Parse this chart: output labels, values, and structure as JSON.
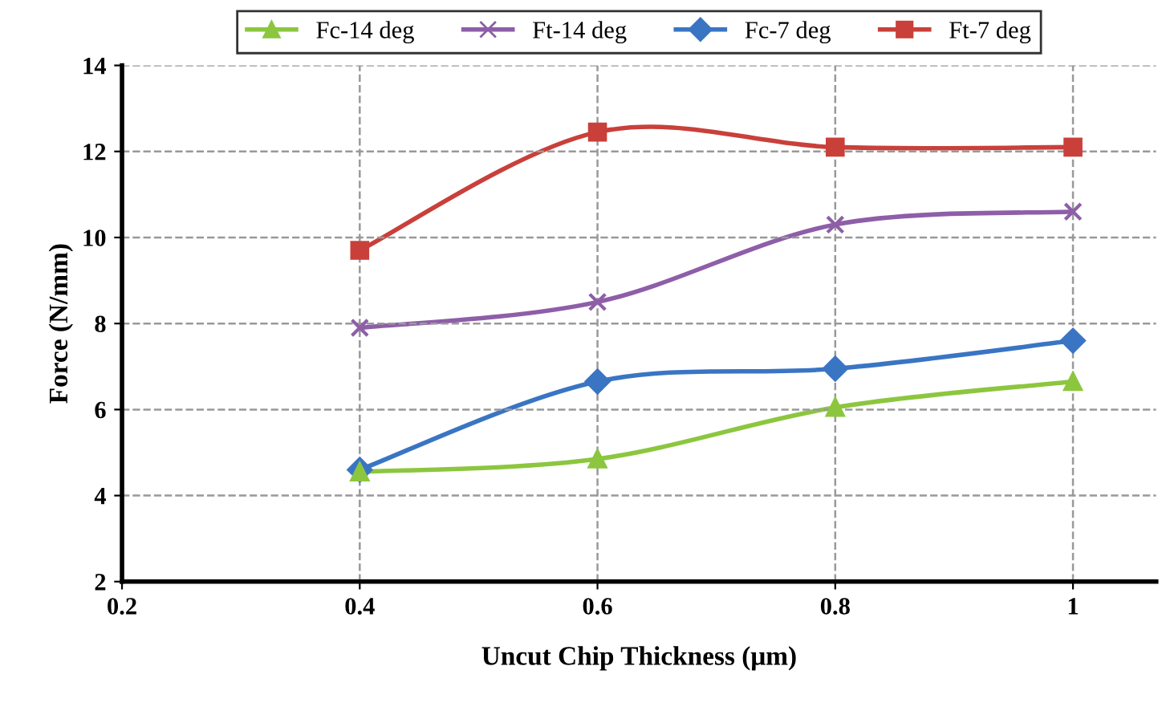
{
  "chart_data": {
    "type": "line",
    "xlabel": "Uncut Chip Thickness (μm)",
    "ylabel": "Force (N/mm)",
    "xlim": [
      0.2,
      1.07
    ],
    "xticks": [
      0.2,
      0.4,
      0.6,
      0.8,
      1
    ],
    "ylim": [
      2,
      14
    ],
    "yticks": [
      2,
      4,
      6,
      8,
      10,
      12,
      14
    ],
    "grid": true,
    "legend": "top",
    "line_style": "solid",
    "series": [
      {
        "name": "Fc-14 deg",
        "color": "#8cc63f",
        "marker": "triangle",
        "x": [
          0.4,
          0.6,
          0.8,
          1
        ],
        "values": [
          4.55,
          4.85,
          6.05,
          6.65
        ]
      },
      {
        "name": "Ft-14 deg",
        "color": "#8e5ea8",
        "marker": "cross",
        "x": [
          0.4,
          0.6,
          0.8,
          1
        ],
        "values": [
          7.9,
          8.5,
          10.3,
          10.6
        ]
      },
      {
        "name": "Fc-7 deg",
        "color": "#3a75c4",
        "marker": "diamond",
        "x": [
          0.4,
          0.6,
          0.8,
          1
        ],
        "values": [
          4.6,
          6.65,
          6.95,
          7.6
        ]
      },
      {
        "name": "Ft-7 deg",
        "color": "#c9403a",
        "marker": "square",
        "x": [
          0.4,
          0.6,
          0.8,
          1
        ],
        "values": [
          9.7,
          12.45,
          12.1,
          12.1
        ]
      }
    ]
  }
}
